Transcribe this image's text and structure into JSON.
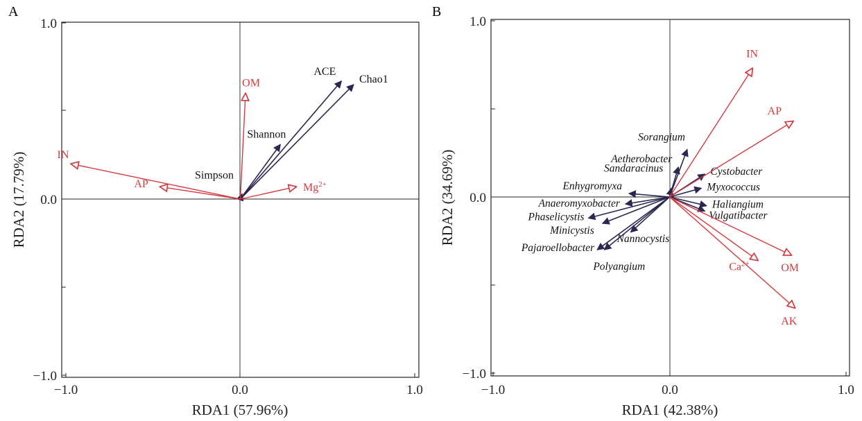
{
  "chart_data": [
    {
      "type": "scatter",
      "subtype": "rda-biplot",
      "panel_label": "A",
      "xlabel": "RDA1 (57.96%)",
      "ylabel": "RDA2 (17.79%)",
      "xlim": [
        -1.0,
        1.0
      ],
      "ylim": [
        -1.0,
        1.0
      ],
      "xticks": [
        "−1.0",
        "0.0",
        "1.0"
      ],
      "yticks": [
        "1.0",
        "0.0",
        "−1.0"
      ],
      "grid": false,
      "env_color": "#d23a3f",
      "resp_color": "#2a2850",
      "env_vectors": [
        {
          "name": "OM",
          "x": 0.03,
          "y": 0.6
        },
        {
          "name": "IN",
          "x": -0.97,
          "y": 0.2
        },
        {
          "name": "AP",
          "x": -0.46,
          "y": 0.07
        },
        {
          "name": "Mg",
          "sup": "2+",
          "x": 0.32,
          "y": 0.07
        }
      ],
      "resp_vectors": [
        {
          "name": "ACE",
          "x": 0.58,
          "y": 0.67
        },
        {
          "name": "Chao1",
          "x": 0.65,
          "y": 0.65
        },
        {
          "name": "Shannon",
          "x": 0.23,
          "y": 0.31
        },
        {
          "name": "Simpson",
          "x": 0.01,
          "y": 0.03
        }
      ]
    },
    {
      "type": "scatter",
      "subtype": "rda-biplot",
      "panel_label": "B",
      "xlabel": "RDA1 (42.38%)",
      "ylabel": "RDA2 (34.69%)",
      "xlim": [
        -1.0,
        1.0
      ],
      "ylim": [
        -1.0,
        1.0
      ],
      "xticks": [
        "−1.0",
        "0.0",
        "1.0"
      ],
      "yticks": [
        "1.0",
        "0.0",
        "−1.0"
      ],
      "grid": false,
      "env_color": "#d23a3f",
      "resp_color": "#2a2850",
      "env_vectors": [
        {
          "name": "IN",
          "x": 0.47,
          "y": 0.73
        },
        {
          "name": "AP",
          "x": 0.7,
          "y": 0.43
        },
        {
          "name": "OM",
          "x": 0.69,
          "y": -0.33
        },
        {
          "name": "Ca",
          "sup": "2+",
          "x": 0.5,
          "y": -0.36
        },
        {
          "name": "AK",
          "x": 0.71,
          "y": -0.63
        }
      ],
      "resp_vectors": [
        {
          "name": "Sorangium",
          "x": 0.1,
          "y": 0.27
        },
        {
          "name": "Aetherobacter",
          "x": 0.05,
          "y": 0.17
        },
        {
          "name": "Sandaracinus",
          "x": 0.01,
          "y": 0.05
        },
        {
          "name": "Cystobacter",
          "x": 0.2,
          "y": 0.13
        },
        {
          "name": "Myxococcus",
          "x": 0.18,
          "y": 0.05
        },
        {
          "name": "Enhygromyxa",
          "x": -0.23,
          "y": 0.02
        },
        {
          "name": "Anaeromyxobacter",
          "x": -0.25,
          "y": -0.04
        },
        {
          "name": "Haliangium",
          "x": 0.21,
          "y": -0.05
        },
        {
          "name": "Vulgatibacter",
          "x": 0.2,
          "y": -0.08
        },
        {
          "name": "Phaselicystis",
          "x": -0.46,
          "y": -0.12
        },
        {
          "name": "Minicystis",
          "x": -0.38,
          "y": -0.15
        },
        {
          "name": "Nannocystis",
          "x": -0.22,
          "y": -0.2
        },
        {
          "name": "Pajaroellobacter",
          "x": -0.41,
          "y": -0.3
        },
        {
          "name": "Polyangium",
          "x": -0.37,
          "y": -0.3
        }
      ]
    }
  ]
}
